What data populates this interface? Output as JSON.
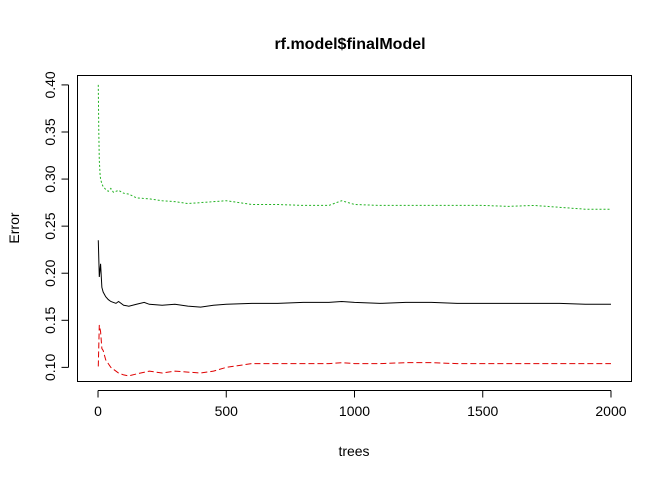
{
  "chart_data": {
    "type": "line",
    "title": "rf.model$finalModel",
    "xlabel": "trees",
    "ylabel": "Error",
    "xlim": [
      0,
      2000
    ],
    "ylim": [
      0.085,
      0.41
    ],
    "xticks": [
      0,
      500,
      1000,
      1500,
      2000
    ],
    "xtick_labels": [
      "0",
      "500",
      "1000",
      "1500",
      "2000"
    ],
    "yticks": [
      0.1,
      0.15,
      0.2,
      0.25,
      0.3,
      0.35,
      0.4
    ],
    "ytick_labels": [
      "0.10",
      "0.15",
      "0.20",
      "0.25",
      "0.30",
      "0.35",
      "0.40"
    ],
    "grid": false,
    "legend": "none",
    "series": [
      {
        "color": "#000000",
        "dash": "solid",
        "x": [
          1,
          5,
          10,
          15,
          20,
          30,
          40,
          50,
          60,
          70,
          80,
          100,
          120,
          150,
          180,
          200,
          250,
          300,
          350,
          400,
          450,
          500,
          600,
          700,
          800,
          900,
          950,
          1000,
          1100,
          1200,
          1300,
          1400,
          1500,
          1600,
          1700,
          1800,
          1900,
          2000
        ],
        "values": [
          0.235,
          0.196,
          0.21,
          0.185,
          0.18,
          0.175,
          0.172,
          0.17,
          0.169,
          0.168,
          0.17,
          0.166,
          0.165,
          0.167,
          0.169,
          0.167,
          0.166,
          0.167,
          0.165,
          0.164,
          0.166,
          0.167,
          0.168,
          0.168,
          0.169,
          0.169,
          0.17,
          0.169,
          0.168,
          0.169,
          0.169,
          0.168,
          0.168,
          0.168,
          0.168,
          0.168,
          0.167,
          0.167
        ]
      },
      {
        "color": "#DF0000",
        "dash": "dashed",
        "x": [
          1,
          5,
          10,
          15,
          20,
          30,
          40,
          50,
          60,
          80,
          100,
          120,
          150,
          200,
          250,
          300,
          350,
          400,
          450,
          500,
          550,
          600,
          700,
          800,
          900,
          950,
          1000,
          1100,
          1200,
          1300,
          1400,
          1500,
          1600,
          1700,
          1800,
          1900,
          2000
        ],
        "values": [
          0.101,
          0.145,
          0.138,
          0.12,
          0.118,
          0.108,
          0.104,
          0.1,
          0.098,
          0.094,
          0.092,
          0.091,
          0.093,
          0.096,
          0.094,
          0.096,
          0.095,
          0.094,
          0.096,
          0.1,
          0.102,
          0.104,
          0.104,
          0.104,
          0.104,
          0.105,
          0.104,
          0.104,
          0.105,
          0.105,
          0.104,
          0.104,
          0.104,
          0.104,
          0.104,
          0.104,
          0.104
        ]
      },
      {
        "color": "#22B222",
        "dash": "dotted",
        "x": [
          1,
          3,
          5,
          8,
          10,
          15,
          20,
          30,
          40,
          50,
          60,
          80,
          100,
          120,
          150,
          200,
          250,
          300,
          350,
          400,
          500,
          600,
          700,
          800,
          900,
          950,
          1000,
          1100,
          1200,
          1300,
          1400,
          1500,
          1600,
          1700,
          1800,
          1900,
          2000
        ],
        "values": [
          0.4,
          0.35,
          0.32,
          0.305,
          0.3,
          0.295,
          0.292,
          0.289,
          0.287,
          0.29,
          0.286,
          0.288,
          0.285,
          0.284,
          0.28,
          0.279,
          0.277,
          0.276,
          0.274,
          0.275,
          0.277,
          0.273,
          0.273,
          0.272,
          0.272,
          0.277,
          0.273,
          0.272,
          0.272,
          0.272,
          0.272,
          0.272,
          0.271,
          0.272,
          0.27,
          0.268,
          0.268
        ]
      }
    ]
  }
}
